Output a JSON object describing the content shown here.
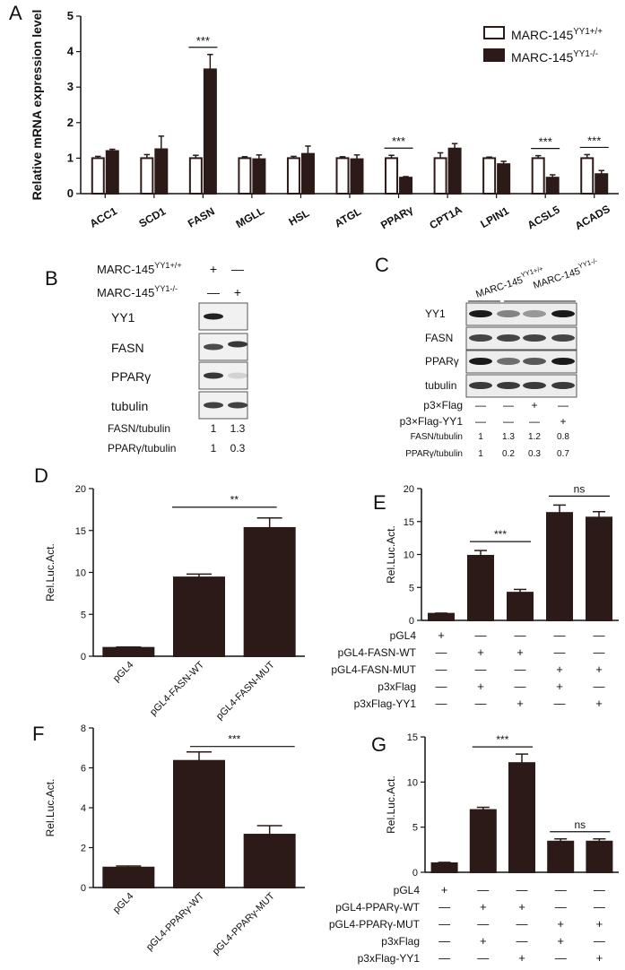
{
  "colors": {
    "filled": "#2b1a17",
    "open": "#ffffff",
    "axis": "#111111"
  },
  "panels": {
    "A": "A",
    "B": "B",
    "C": "C",
    "D": "D",
    "E": "E",
    "F": "F",
    "G": "G"
  },
  "chart_data": [
    {
      "id": "A",
      "type": "bar",
      "ylabel": "Relative mRNA expression level",
      "ylim": [
        0,
        5
      ],
      "yticks": [
        "0",
        "1",
        "2",
        "3",
        "4",
        "5"
      ],
      "categories": [
        "ACC1",
        "SCD1",
        "FASN",
        "MGLL",
        "HSL",
        "ATGL",
        "PPARγ",
        "CPT1A",
        "LPIN1",
        "ACSL5",
        "ACADS"
      ],
      "series": [
        {
          "name": "MARC-145YY1+/+",
          "name_base": "MARC-145",
          "name_sup": "YY1+/+",
          "values": [
            1.0,
            1.0,
            1.0,
            1.0,
            1.0,
            1.0,
            1.0,
            1.0,
            1.0,
            1.0,
            1.0
          ],
          "errors": [
            0.05,
            0.1,
            0.08,
            0.04,
            0.05,
            0.04,
            0.08,
            0.15,
            0.03,
            0.07,
            0.1
          ]
        },
        {
          "name": "MARC-145YY1-/-",
          "name_base": "MARC-145",
          "name_sup": "YY1-/-",
          "values": [
            1.2,
            1.25,
            3.5,
            0.97,
            1.12,
            0.97,
            0.45,
            1.27,
            0.83,
            0.45,
            0.55
          ],
          "errors": [
            0.05,
            0.37,
            0.42,
            0.12,
            0.22,
            0.12,
            0.03,
            0.14,
            0.08,
            0.08,
            0.1
          ]
        }
      ],
      "significance": [
        {
          "category": "FASN",
          "label": "***"
        },
        {
          "category": "PPARγ",
          "label": "***"
        },
        {
          "category": "ACSL5",
          "label": "***"
        },
        {
          "category": "ACADS",
          "label": "***"
        }
      ]
    },
    {
      "id": "D",
      "type": "bar",
      "ylabel": "Rel.Luc.Act.",
      "ylim": [
        0,
        20
      ],
      "yticks": [
        "0",
        "5",
        "10",
        "15",
        "20"
      ],
      "categories": [
        "pGL4",
        "pGL4-FASN-WT",
        "pGL4-FASN-MUT"
      ],
      "values": [
        1.0,
        9.4,
        15.3
      ],
      "errors": [
        0.1,
        0.4,
        1.2
      ],
      "significance": [
        {
          "from": 1,
          "to": 2,
          "label": "**"
        }
      ]
    },
    {
      "id": "E",
      "type": "bar",
      "ylabel": "Rel.Luc.Act.",
      "ylim": [
        0,
        20
      ],
      "yticks": [
        "0",
        "5",
        "10",
        "15",
        "20"
      ],
      "values": [
        1.0,
        9.8,
        4.2,
        16.3,
        15.6
      ],
      "errors": [
        0.1,
        0.8,
        0.5,
        1.2,
        0.9
      ],
      "significance": [
        {
          "from": 1,
          "to": 2,
          "label": "***"
        },
        {
          "from": 3,
          "to": 4,
          "label": "ns"
        }
      ],
      "matrix_rows": [
        {
          "label": "pGL4",
          "marks": [
            "+",
            "—",
            "—",
            "—",
            "—"
          ]
        },
        {
          "label": "pGL4-FASN-WT",
          "marks": [
            "—",
            "+",
            "+",
            "—",
            "—"
          ]
        },
        {
          "label": "pGL4-FASN-MUT",
          "marks": [
            "—",
            "—",
            "—",
            "+",
            "+"
          ]
        },
        {
          "label": "p3xFlag",
          "marks": [
            "—",
            "+",
            "—",
            "+",
            "—"
          ]
        },
        {
          "label": "p3xFlag-YY1",
          "marks": [
            "—",
            "—",
            "+",
            "—",
            "+"
          ]
        }
      ]
    },
    {
      "id": "F",
      "type": "bar",
      "ylabel": "Rel.Luc.Act.",
      "ylim": [
        0,
        8
      ],
      "yticks": [
        "0",
        "2",
        "4",
        "6",
        "8"
      ],
      "categories": [
        "pGL4",
        "pGL4-PPARγ-WT",
        "pGL4-PPARγ-MUT"
      ],
      "values": [
        1.0,
        6.35,
        2.65
      ],
      "errors": [
        0.08,
        0.45,
        0.45
      ],
      "significance": [
        {
          "from": 1,
          "to": 2,
          "label": "***"
        }
      ]
    },
    {
      "id": "G",
      "type": "bar",
      "ylabel": "Rel.Luc.Act.",
      "ylim": [
        0,
        15
      ],
      "yticks": [
        "0",
        "5",
        "10",
        "15"
      ],
      "values": [
        1.0,
        6.9,
        12.1,
        3.4,
        3.4
      ],
      "errors": [
        0.1,
        0.3,
        1.0,
        0.3,
        0.3
      ],
      "significance": [
        {
          "from": 1,
          "to": 2,
          "label": "***"
        },
        {
          "from": 3,
          "to": 4,
          "label": "ns"
        }
      ],
      "matrix_rows": [
        {
          "label": "pGL4",
          "marks": [
            "+",
            "—",
            "—",
            "—",
            "—"
          ]
        },
        {
          "label": "pGL4-PPARγ-WT",
          "marks": [
            "—",
            "+",
            "+",
            "—",
            "—"
          ]
        },
        {
          "label": "pGL4-PPARγ-MUT",
          "marks": [
            "—",
            "—",
            "—",
            "+",
            "+"
          ]
        },
        {
          "label": "p3xFlag",
          "marks": [
            "—",
            "+",
            "—",
            "+",
            "—"
          ]
        },
        {
          "label": "p3xFlag-YY1",
          "marks": [
            "—",
            "—",
            "+",
            "—",
            "+"
          ]
        }
      ]
    }
  ],
  "blot_B": {
    "header_rows": [
      {
        "label": "MARC-145",
        "sup": "YY1+/+",
        "marks": [
          "+",
          "—"
        ]
      },
      {
        "label": "MARC-145",
        "sup": "YY1-/-",
        "marks": [
          "—",
          "+"
        ]
      }
    ],
    "bands": [
      "YY1",
      "FASN",
      "PPARγ",
      "tubulin"
    ],
    "ratios": [
      {
        "label": "FASN/tubulin",
        "values": [
          "1",
          "1.3"
        ]
      },
      {
        "label": "PPARγ/tubulin",
        "values": [
          "1",
          "0.3"
        ]
      }
    ]
  },
  "blot_C": {
    "groups": [
      {
        "label": "MARC-145",
        "sup": "YY1+/+"
      },
      {
        "label": "MARC-145",
        "sup": "YY1-/-"
      }
    ],
    "bands": [
      "YY1",
      "FASN",
      "PPARγ",
      "tubulin"
    ],
    "rows": [
      {
        "label": "p3×Flag",
        "marks": [
          "—",
          "—",
          "+",
          "—"
        ]
      },
      {
        "label": "p3×Flag-YY1",
        "marks": [
          "—",
          "—",
          "—",
          "+"
        ]
      }
    ],
    "ratios": [
      {
        "label": "FASN/tubulin",
        "values": [
          "1",
          "1.3",
          "1.2",
          "0.8"
        ]
      },
      {
        "label": "PPARγ/tubulin",
        "values": [
          "1",
          "0.2",
          "0.3",
          "0.7"
        ]
      }
    ]
  }
}
